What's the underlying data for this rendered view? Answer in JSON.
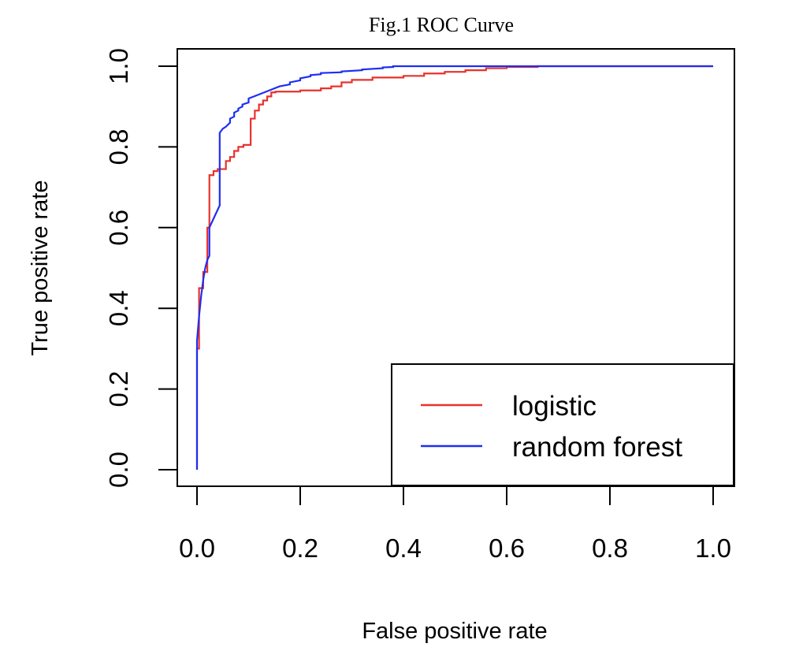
{
  "chart_data": {
    "type": "line",
    "title": "Fig.1 ROC Curve",
    "xlabel": "False positive rate",
    "ylabel": "True positive rate",
    "xlim": [
      0,
      1
    ],
    "ylim": [
      0,
      1
    ],
    "x_ticks": [
      "0.0",
      "0.2",
      "0.4",
      "0.6",
      "0.8",
      "1.0"
    ],
    "y_ticks": [
      "0.0",
      "0.2",
      "0.4",
      "0.6",
      "0.8",
      "1.0"
    ],
    "grid": false,
    "legend_position": "bottom-right",
    "series": [
      {
        "name": "logistic",
        "color": "#e8322c",
        "x": [
          0.0,
          0.0,
          0.004,
          0.004,
          0.012,
          0.012,
          0.02,
          0.02,
          0.024,
          0.024,
          0.032,
          0.032,
          0.04,
          0.04,
          0.056,
          0.056,
          0.064,
          0.064,
          0.072,
          0.072,
          0.08,
          0.08,
          0.09,
          0.09,
          0.104,
          0.104,
          0.112,
          0.112,
          0.12,
          0.12,
          0.128,
          0.128,
          0.136,
          0.136,
          0.144,
          0.144,
          0.152,
          0.152,
          0.2,
          0.2,
          0.24,
          0.24,
          0.26,
          0.26,
          0.28,
          0.28,
          0.3,
          0.3,
          0.34,
          0.34,
          0.4,
          0.4,
          0.44,
          0.44,
          0.48,
          0.48,
          0.52,
          0.52,
          0.56,
          0.56,
          0.6,
          0.6,
          0.66,
          0.66,
          1.0
        ],
        "y": [
          0.0,
          0.3,
          0.3,
          0.45,
          0.45,
          0.49,
          0.49,
          0.6,
          0.6,
          0.73,
          0.73,
          0.74,
          0.74,
          0.745,
          0.745,
          0.765,
          0.765,
          0.775,
          0.775,
          0.79,
          0.79,
          0.8,
          0.8,
          0.805,
          0.805,
          0.87,
          0.87,
          0.89,
          0.89,
          0.905,
          0.905,
          0.915,
          0.915,
          0.925,
          0.925,
          0.935,
          0.935,
          0.937,
          0.937,
          0.94,
          0.94,
          0.945,
          0.945,
          0.95,
          0.95,
          0.96,
          0.96,
          0.966,
          0.966,
          0.972,
          0.972,
          0.976,
          0.976,
          0.982,
          0.982,
          0.986,
          0.986,
          0.99,
          0.99,
          0.995,
          0.995,
          0.998,
          0.998,
          1.0,
          1.0
        ]
      },
      {
        "name": "random forest",
        "color": "#1f2ef2",
        "x": [
          0.0,
          0.0,
          0.004,
          0.008,
          0.012,
          0.016,
          0.02,
          0.024,
          0.024,
          0.044,
          0.044,
          0.05,
          0.056,
          0.064,
          0.064,
          0.072,
          0.072,
          0.08,
          0.08,
          0.088,
          0.088,
          0.1,
          0.1,
          0.12,
          0.14,
          0.16,
          0.18,
          0.18,
          0.2,
          0.2,
          0.22,
          0.22,
          0.24,
          0.24,
          0.28,
          0.28,
          0.32,
          0.32,
          0.36,
          0.36,
          0.38,
          0.38,
          1.0
        ],
        "y": [
          0.0,
          0.32,
          0.38,
          0.43,
          0.47,
          0.5,
          0.52,
          0.53,
          0.6,
          0.655,
          0.835,
          0.845,
          0.85,
          0.86,
          0.87,
          0.875,
          0.885,
          0.89,
          0.895,
          0.9,
          0.905,
          0.91,
          0.92,
          0.93,
          0.94,
          0.95,
          0.955,
          0.96,
          0.965,
          0.97,
          0.975,
          0.978,
          0.98,
          0.983,
          0.985,
          0.987,
          0.99,
          0.992,
          0.995,
          0.997,
          0.998,
          1.0,
          1.0
        ]
      }
    ]
  }
}
